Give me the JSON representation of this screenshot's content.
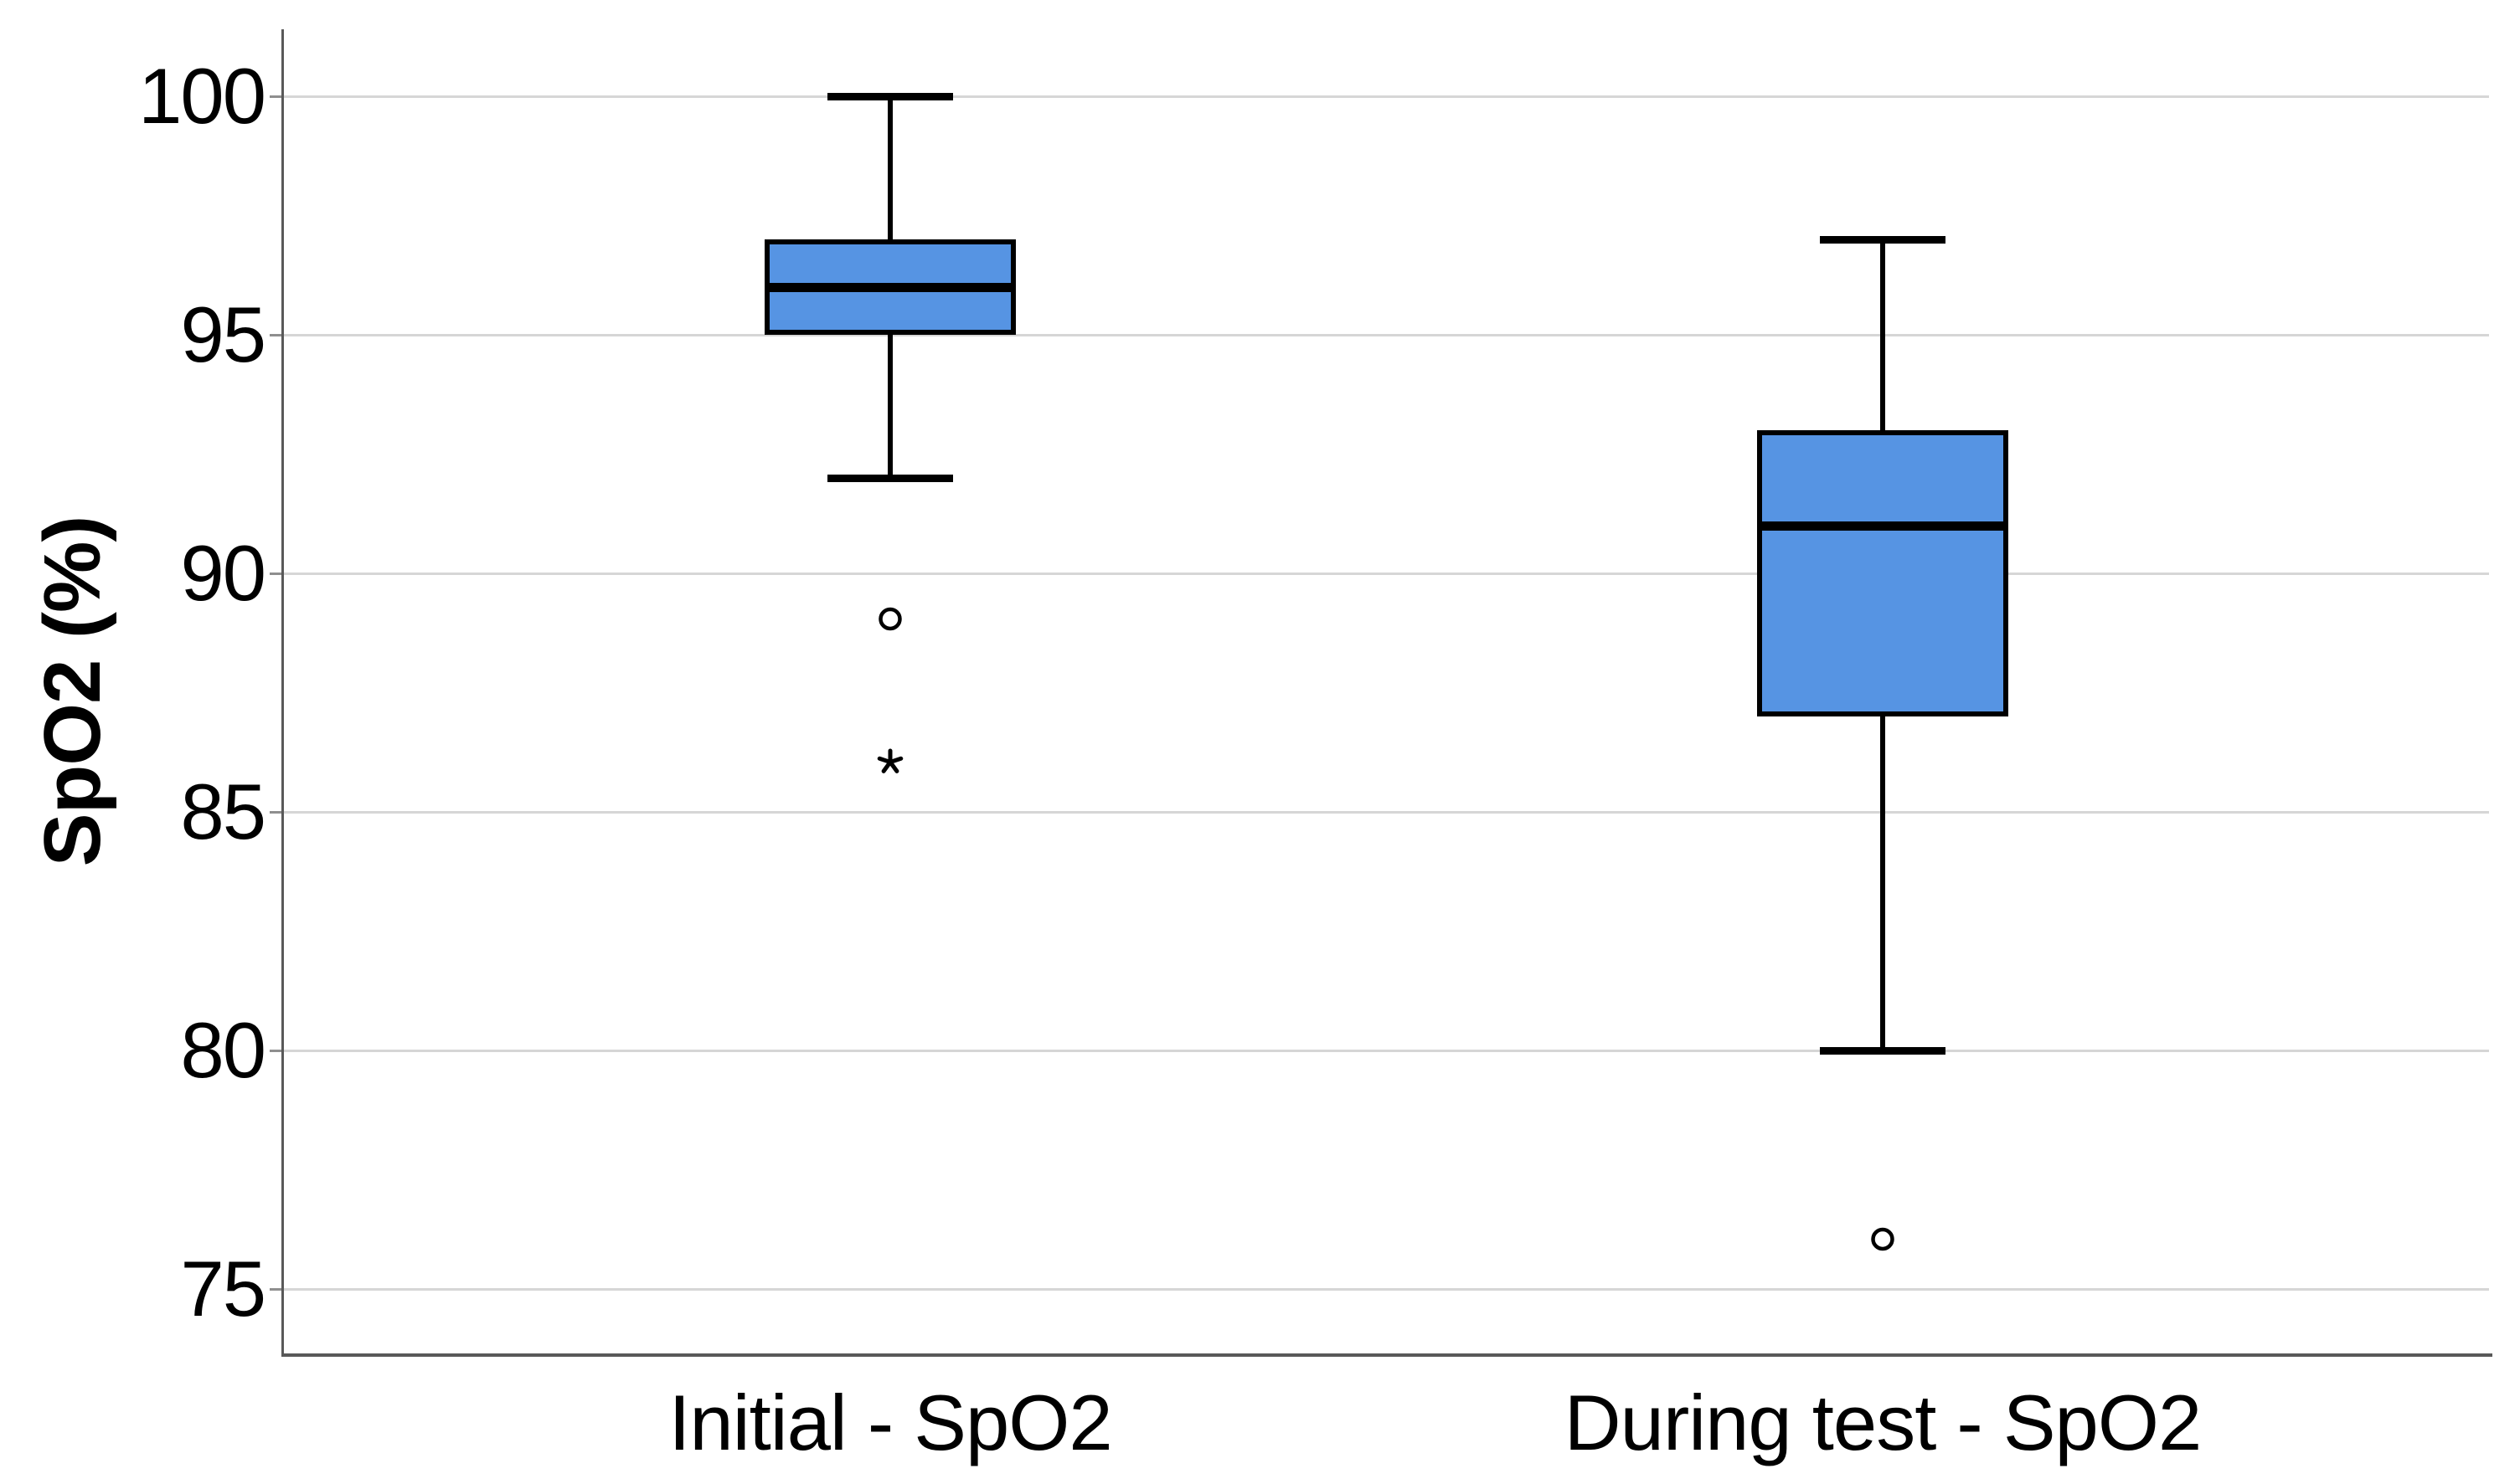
{
  "chart_data": {
    "type": "box",
    "title": "",
    "ylabel": "SpO2 (%)",
    "xlabel": "",
    "categories": [
      "Initial - SpO2",
      "During test - SpO2"
    ],
    "yticks": [
      100,
      95,
      90,
      85,
      80,
      75
    ],
    "ylim": [
      73.5,
      101.5
    ],
    "grid": "horizontal-only",
    "legend": "none",
    "series": [
      {
        "label": "Initial - SpO2",
        "whisker_min": 92,
        "q1": 95,
        "median": 96,
        "q3": 97,
        "whisker_max": 100,
        "outliers": [
          {
            "value": 89,
            "marker": "circle"
          }
        ],
        "extremes": [
          {
            "value": 86,
            "marker": "star"
          }
        ]
      },
      {
        "label": "During test - SpO2",
        "whisker_min": 80,
        "q1": 87,
        "median": 91,
        "q3": 93,
        "whisker_max": 97,
        "outliers": [
          {
            "value": 76,
            "marker": "circle"
          }
        ],
        "extremes": []
      }
    ],
    "colors": {
      "box_fill": "#5694E3",
      "box_border": "#000000",
      "median": "#000000",
      "whisker": "#000000",
      "marker": "#000000",
      "gridline": "#D6D6D6",
      "tick": "#8F8F8F",
      "axis": "#595959",
      "text": "#000000",
      "background": "#FFFFFF"
    }
  }
}
